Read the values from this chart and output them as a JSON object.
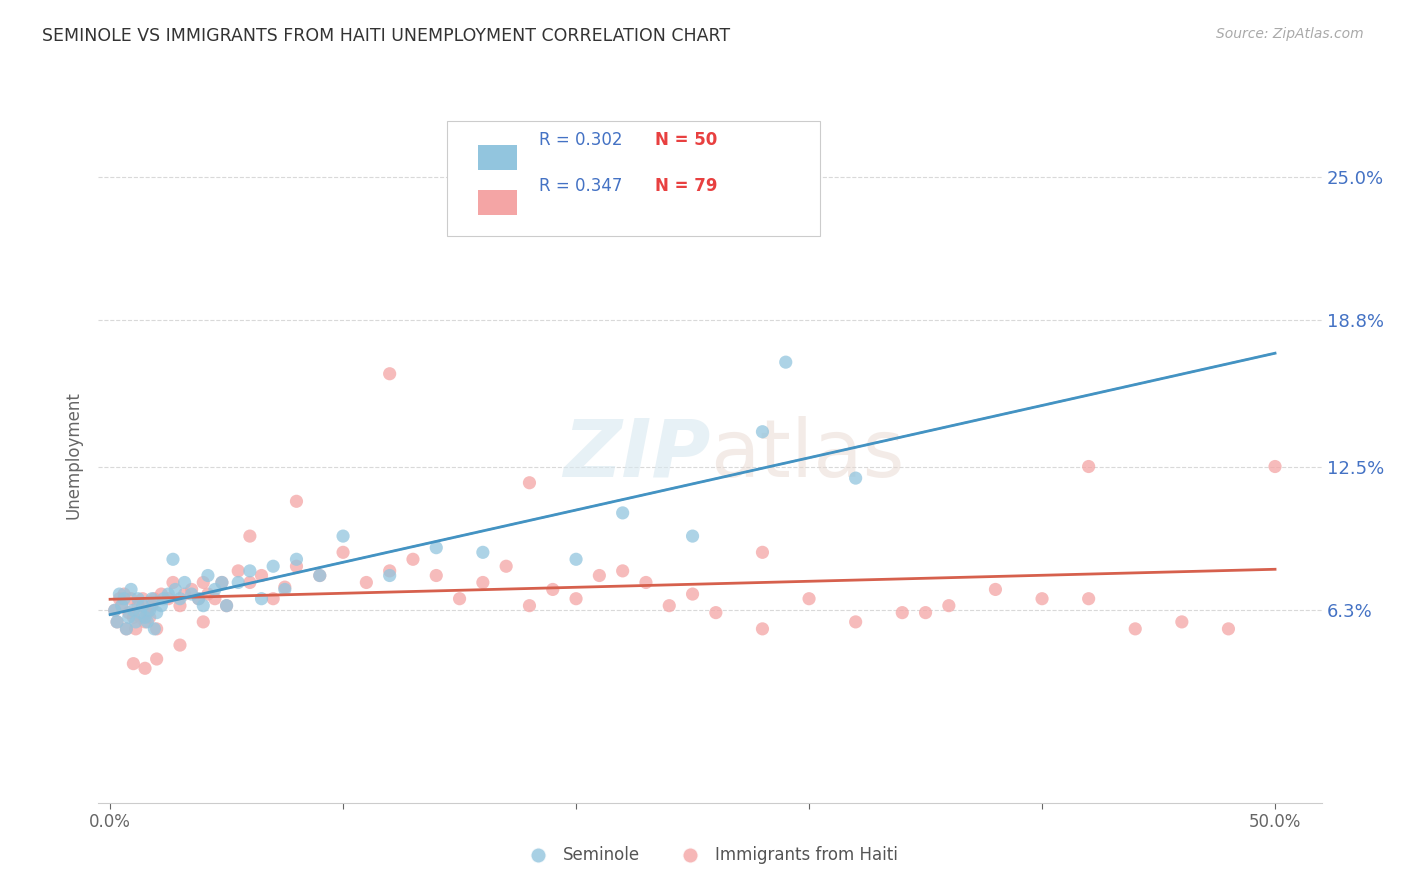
{
  "title": "SEMINOLE VS IMMIGRANTS FROM HAITI UNEMPLOYMENT CORRELATION CHART",
  "source": "Source: ZipAtlas.com",
  "ylabel": "Unemployment",
  "ytick_labels": [
    "6.3%",
    "12.5%",
    "18.8%",
    "25.0%"
  ],
  "ytick_values": [
    0.063,
    0.125,
    0.188,
    0.25
  ],
  "xlim": [
    -0.005,
    0.52
  ],
  "ylim": [
    -0.02,
    0.28
  ],
  "legend_label_blue": "Seminole",
  "legend_label_pink": "Immigrants from Haiti",
  "watermark_zip": "ZIP",
  "watermark_atlas": "atlas",
  "blue_color": "#92c5de",
  "pink_color": "#f4a5a5",
  "trendline_blue_color": "#4393c3",
  "trendline_pink_color": "#d6604d",
  "trendline_dashed_color": "#aaaaaa",
  "background_color": "#ffffff",
  "grid_color": "#d9d9d9",
  "blue_scatter_x": [
    0.002,
    0.003,
    0.004,
    0.005,
    0.006,
    0.007,
    0.008,
    0.009,
    0.01,
    0.011,
    0.012,
    0.013,
    0.014,
    0.015,
    0.016,
    0.017,
    0.018,
    0.019,
    0.02,
    0.022,
    0.023,
    0.025,
    0.027,
    0.028,
    0.03,
    0.032,
    0.035,
    0.038,
    0.04,
    0.042,
    0.045,
    0.048,
    0.05,
    0.055,
    0.06,
    0.065,
    0.07,
    0.075,
    0.08,
    0.09,
    0.1,
    0.12,
    0.14,
    0.16,
    0.2,
    0.22,
    0.25,
    0.28,
    0.32,
    0.29
  ],
  "blue_scatter_y": [
    0.063,
    0.058,
    0.07,
    0.065,
    0.068,
    0.055,
    0.06,
    0.072,
    0.063,
    0.058,
    0.068,
    0.062,
    0.065,
    0.06,
    0.058,
    0.063,
    0.068,
    0.055,
    0.062,
    0.065,
    0.068,
    0.07,
    0.085,
    0.072,
    0.068,
    0.075,
    0.07,
    0.068,
    0.065,
    0.078,
    0.072,
    0.075,
    0.065,
    0.075,
    0.08,
    0.068,
    0.082,
    0.072,
    0.085,
    0.078,
    0.095,
    0.078,
    0.09,
    0.088,
    0.085,
    0.105,
    0.095,
    0.14,
    0.12,
    0.17
  ],
  "pink_scatter_x": [
    0.002,
    0.003,
    0.004,
    0.005,
    0.006,
    0.007,
    0.008,
    0.009,
    0.01,
    0.011,
    0.012,
    0.013,
    0.014,
    0.015,
    0.016,
    0.017,
    0.018,
    0.019,
    0.02,
    0.022,
    0.025,
    0.027,
    0.03,
    0.032,
    0.035,
    0.038,
    0.04,
    0.042,
    0.045,
    0.048,
    0.05,
    0.055,
    0.06,
    0.065,
    0.07,
    0.075,
    0.08,
    0.09,
    0.1,
    0.11,
    0.12,
    0.13,
    0.14,
    0.15,
    0.16,
    0.17,
    0.18,
    0.19,
    0.2,
    0.21,
    0.22,
    0.23,
    0.24,
    0.25,
    0.26,
    0.28,
    0.3,
    0.32,
    0.34,
    0.36,
    0.38,
    0.4,
    0.42,
    0.44,
    0.46,
    0.48,
    0.5,
    0.35,
    0.28,
    0.42,
    0.18,
    0.12,
    0.08,
    0.06,
    0.04,
    0.03,
    0.02,
    0.015,
    0.01
  ],
  "pink_scatter_y": [
    0.063,
    0.058,
    0.068,
    0.065,
    0.07,
    0.055,
    0.062,
    0.068,
    0.06,
    0.055,
    0.065,
    0.06,
    0.068,
    0.058,
    0.062,
    0.06,
    0.065,
    0.068,
    0.055,
    0.07,
    0.068,
    0.075,
    0.065,
    0.07,
    0.072,
    0.068,
    0.075,
    0.07,
    0.068,
    0.075,
    0.065,
    0.08,
    0.075,
    0.078,
    0.068,
    0.073,
    0.082,
    0.078,
    0.088,
    0.075,
    0.08,
    0.085,
    0.078,
    0.068,
    0.075,
    0.082,
    0.065,
    0.072,
    0.068,
    0.078,
    0.08,
    0.075,
    0.065,
    0.07,
    0.062,
    0.055,
    0.068,
    0.058,
    0.062,
    0.065,
    0.072,
    0.068,
    0.125,
    0.055,
    0.058,
    0.055,
    0.125,
    0.062,
    0.088,
    0.068,
    0.118,
    0.165,
    0.11,
    0.095,
    0.058,
    0.048,
    0.042,
    0.038,
    0.04
  ],
  "xtick_positions": [
    0.0,
    0.5
  ],
  "xtick_labels": [
    "0.0%",
    "50.0%"
  ]
}
